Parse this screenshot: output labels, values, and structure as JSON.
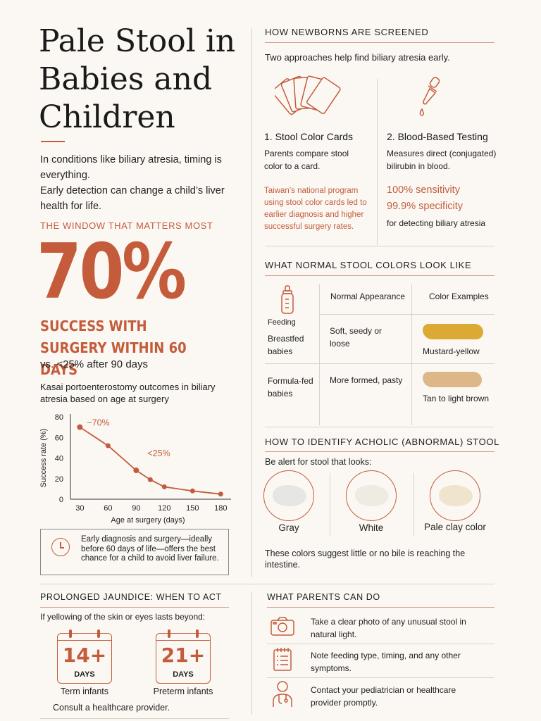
{
  "title": "Pale Stool in Babies and Children",
  "intro": {
    "line1": "In conditions like biliary atresia, timing is everything.",
    "line2": "Early detection can change a child’s liver health for life."
  },
  "window": {
    "header": "THE WINDOW THAT MATTERS MOST",
    "big_stat": "70%",
    "success_line": "SUCCESS WITH SURGERY WITHIN 60 DAYS",
    "comparison": "vs. <25% after 90 days",
    "chart_caption": "Kasai portoenterostomy outcomes in biliary atresia based on age at surgery"
  },
  "chart_data": {
    "type": "line",
    "x": [
      30,
      60,
      90,
      105,
      120,
      150,
      180
    ],
    "series": [
      {
        "values": [
          70,
          52,
          28,
          19,
          12,
          8,
          5
        ]
      }
    ],
    "xlabel": "Age at surgery (days)",
    "ylabel": "Success rate (%)",
    "xticks": [
      "30",
      "60",
      "90",
      "120",
      "150",
      "180"
    ],
    "yticks": [
      "0",
      "20",
      "40",
      "60",
      "80"
    ],
    "xlim": [
      20,
      185
    ],
    "ylim": [
      0,
      80
    ],
    "annotations": [
      {
        "text": "~70%",
        "x": 30,
        "y": 70
      },
      {
        "text": "<25%",
        "x": 90,
        "y": 28
      }
    ],
    "grid": false
  },
  "callout": {
    "icon": "clock-icon",
    "text": "Early diagnosis and surgery—ideally before 60 days of life—offers the best chance for a child to avoid liver failure."
  },
  "screening": {
    "header": "HOW NEWBORNS ARE SCREENED",
    "subtitle": "Two approaches help find biliary atresia early.",
    "methods": [
      {
        "icon": "stool-color-cards-icon",
        "title": "1. Stool Color Cards",
        "desc": "Parents compare stool color to a card.",
        "note": "Taiwan’s national program using stool color cards led to earlier diagnosis and higher successful surgery rates."
      },
      {
        "icon": "dropper-icon",
        "title": "2. Blood-Based Testing",
        "desc": "Measures direct (conjugated) bilirubin in blood.",
        "stat1": "100% sensitivity",
        "stat2": "99.9% specificity",
        "note": "for detecting biliary atresia"
      }
    ]
  },
  "normal": {
    "header": "WHAT NORMAL STOOL COLORS LOOK LIKE",
    "feeding_label": "Feeding",
    "col_appearance": "Normal Appearance",
    "col_examples": "Color Examples",
    "rows": [
      {
        "feeding": "Breastfed babies",
        "appearance": "Soft, seedy or loose",
        "color_name": "Mustard-yellow",
        "color": "#dcaa34"
      },
      {
        "feeding": "Formula-fed babies",
        "appearance": "More formed, pasty",
        "color_name": "Tan to light brown",
        "color": "#ddb787"
      }
    ]
  },
  "acholic": {
    "header": "HOW TO IDENTIFY ACHOLIC (ABNORMAL) STOOL",
    "intro": "Be alert for stool that looks:",
    "items": [
      {
        "label": "Gray",
        "color": "#e6e6e4"
      },
      {
        "label": "White",
        "color": "#efebe3"
      },
      {
        "label": "Pale clay color",
        "color": "#efe5cf"
      }
    ],
    "footer": "These colors suggest little or no bile is reaching the intestine."
  },
  "jaundice": {
    "header": "PROLONGED JAUNDICE: WHEN TO ACT",
    "intro": "If yellowing of the skin or eyes lasts beyond:",
    "items": [
      {
        "number": "14+",
        "unit": "DAYS",
        "label": "Term infants"
      },
      {
        "number": "21+",
        "unit": "DAYS",
        "label": "Preterm infants"
      }
    ],
    "footer": "Consult a healthcare provider."
  },
  "parents": {
    "header": "WHAT PARENTS CAN DO",
    "items": [
      {
        "icon": "camera-icon",
        "text": "Take a clear photo of any unusual stool in natural light."
      },
      {
        "icon": "notepad-icon",
        "text": "Note feeding type, timing, and any other symptoms."
      },
      {
        "icon": "doctor-icon",
        "text": "Contact your pediatrician or healthcare provider promptly."
      }
    ]
  },
  "colors": {
    "accent": "#c45c3c",
    "background": "#fbf8f3"
  }
}
